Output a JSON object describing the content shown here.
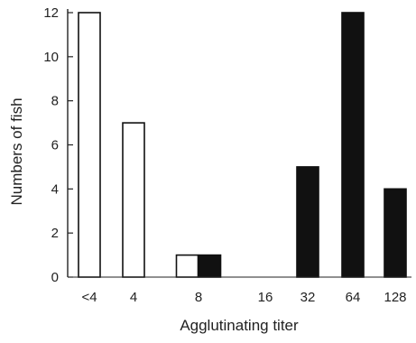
{
  "chart_data": {
    "type": "bar",
    "title": "",
    "xlabel": "Agglutinating titer",
    "ylabel": "Numbers of fish",
    "ylim": [
      0,
      12
    ],
    "yticks": [
      0,
      2,
      4,
      6,
      8,
      10,
      12
    ],
    "categories": [
      "<4",
      "4",
      "8",
      "16",
      "32",
      "64",
      "128"
    ],
    "series": [
      {
        "fill": "#ffffff",
        "stroke": "#111111",
        "values": [
          12,
          7,
          1,
          0,
          0,
          0,
          0
        ]
      },
      {
        "fill": "#111111",
        "stroke": "#111111",
        "values": [
          0,
          0,
          1,
          0,
          5,
          12,
          4
        ]
      }
    ],
    "grid": false,
    "legend": "none"
  }
}
